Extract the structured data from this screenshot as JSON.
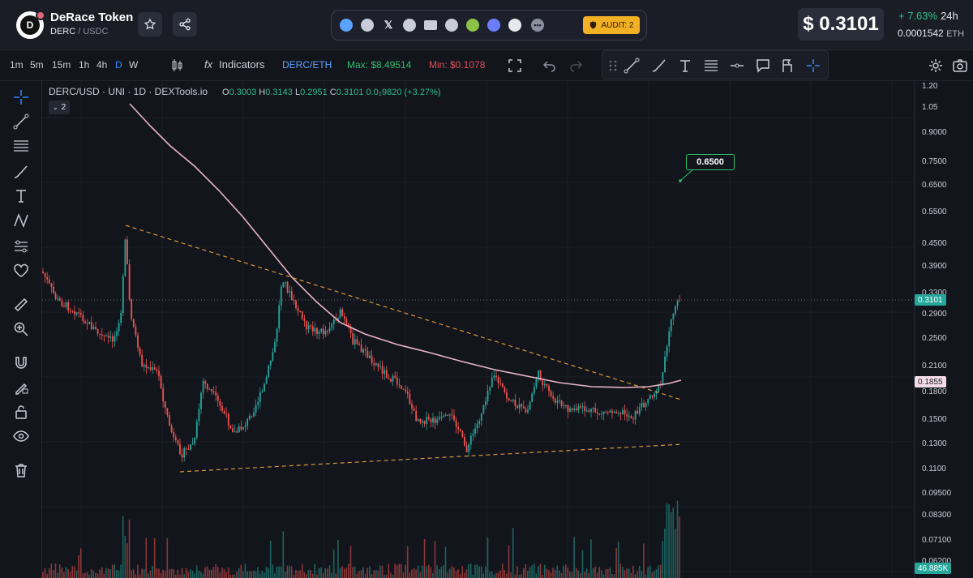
{
  "header": {
    "token_name": "DeRace Token",
    "pair_base": "DERC",
    "pair_quote": "USDC",
    "pair_sep": "/",
    "logo_letter": "D",
    "audit_label": "AUDIT: 2",
    "price": "$ 0.3101",
    "change": "+ 7.63%",
    "change_period": "24h",
    "eth_price": "0.0001542",
    "eth_unit": "ETH"
  },
  "toolbar": {
    "timeframes": [
      "1m",
      "5m",
      "15m",
      "1h",
      "4h",
      "D",
      "W"
    ],
    "active_timeframe": "D",
    "indicators_label": "Indicators",
    "ratio_label": "DERC/ETH",
    "max_label": "Max: $8.49514",
    "min_label": "Min: $0.1078"
  },
  "chart": {
    "legend": "DERC/USD · UNI · 1D · DEXTools.io",
    "ohlc": {
      "o_key": "O",
      "o": "0.3003",
      "h_key": "H",
      "h": "0.3143",
      "l_key": "L",
      "l": "0.2951",
      "c_key": "C",
      "c": "0.3101",
      "chg": "0.0₂9820 (+3.27%)"
    },
    "collapse_count": "2",
    "target_label": "0.6500",
    "y_labels": [
      "1.20",
      "1.05",
      "0.9000",
      "0.7500",
      "0.6500",
      "0.5500",
      "0.4500",
      "0.3900",
      "0.3300",
      "0.2900",
      "0.2500",
      "0.2100",
      "0.1800",
      "0.1500",
      "0.1300",
      "0.1100",
      "0.09500",
      "0.08300",
      "0.07100",
      "0.06200"
    ],
    "price_tag": "0.3101",
    "ma_tag": "0.1855",
    "volume_tag": "46.885K",
    "colors": {
      "up": "#26a69a",
      "down": "#ef5350",
      "ma": "#e8b4c8",
      "trend": "#d9973a"
    }
  }
}
